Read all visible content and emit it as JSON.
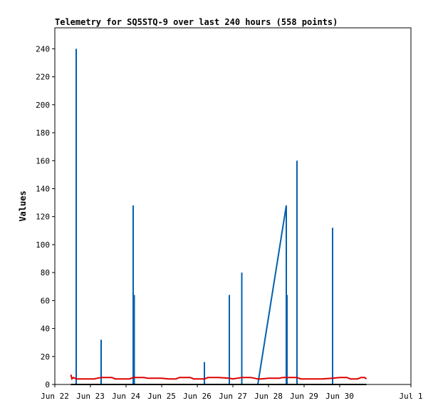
{
  "chart_data": {
    "type": "line",
    "title": "Telemetry for SQ5STQ-9 over last 240 hours (558 points)",
    "xlabel": "",
    "ylabel": "Values",
    "x_unit": "days (June)",
    "xlim": [
      22,
      32
    ],
    "ylim": [
      0,
      255
    ],
    "x_ticks": [
      {
        "value": 22,
        "label": "Jun 22"
      },
      {
        "value": 23,
        "label": "Jun 23"
      },
      {
        "value": 24,
        "label": "Jun 24"
      },
      {
        "value": 25,
        "label": "Jun 25"
      },
      {
        "value": 26,
        "label": "Jun 26"
      },
      {
        "value": 27,
        "label": "Jun 27"
      },
      {
        "value": 28,
        "label": "Jun 28"
      },
      {
        "value": 29,
        "label": "Jun 29"
      },
      {
        "value": 30,
        "label": "Jun 30"
      },
      {
        "value": 32,
        "label": "Jul 1"
      }
    ],
    "y_ticks": [
      0,
      20,
      40,
      60,
      80,
      100,
      120,
      140,
      160,
      180,
      200,
      220,
      240
    ],
    "grid": false,
    "series": [
      {
        "color": "#0060b0",
        "points": [
          [
            22.45,
            0
          ],
          [
            22.6,
            0
          ],
          [
            22.6,
            240
          ],
          [
            22.6,
            0
          ],
          [
            23.3,
            0
          ],
          [
            23.3,
            32
          ],
          [
            23.3,
            0
          ],
          [
            24.2,
            0
          ],
          [
            24.2,
            128
          ],
          [
            24.2,
            0
          ],
          [
            24.23,
            0
          ],
          [
            24.23,
            64
          ],
          [
            24.23,
            0
          ],
          [
            26.2,
            0
          ],
          [
            26.2,
            16
          ],
          [
            26.2,
            0
          ],
          [
            26.9,
            0
          ],
          [
            26.9,
            64
          ],
          [
            26.9,
            0
          ],
          [
            27.25,
            0
          ],
          [
            27.25,
            80
          ],
          [
            27.25,
            0
          ],
          [
            27.7,
            0
          ],
          [
            28.5,
            128
          ],
          [
            28.5,
            0
          ],
          [
            28.52,
            0
          ],
          [
            28.52,
            64
          ],
          [
            28.52,
            0
          ],
          [
            28.8,
            0
          ],
          [
            28.8,
            160
          ],
          [
            28.8,
            0
          ],
          [
            29.8,
            0
          ],
          [
            29.8,
            112
          ],
          [
            29.8,
            0
          ],
          [
            30.5,
            0
          ]
        ]
      },
      {
        "color": "#dd0000",
        "points": [
          [
            22.45,
            7
          ],
          [
            22.48,
            4
          ],
          [
            22.52,
            5
          ],
          [
            22.6,
            4
          ],
          [
            23.0,
            4
          ],
          [
            23.1,
            4
          ],
          [
            23.3,
            5
          ],
          [
            23.6,
            5
          ],
          [
            23.7,
            4
          ],
          [
            23.8,
            4
          ],
          [
            24.1,
            4
          ],
          [
            24.2,
            5
          ],
          [
            24.5,
            5
          ],
          [
            24.6,
            4.5
          ],
          [
            25.0,
            4.5
          ],
          [
            25.2,
            4
          ],
          [
            25.4,
            4
          ],
          [
            25.5,
            5
          ],
          [
            25.8,
            5
          ],
          [
            25.9,
            4
          ],
          [
            26.2,
            4
          ],
          [
            26.3,
            5
          ],
          [
            26.6,
            5
          ],
          [
            26.9,
            4.5
          ],
          [
            27.0,
            4
          ],
          [
            27.25,
            5
          ],
          [
            27.5,
            5
          ],
          [
            27.7,
            4
          ],
          [
            27.8,
            4
          ],
          [
            28.0,
            4.5
          ],
          [
            28.3,
            4.5
          ],
          [
            28.4,
            5
          ],
          [
            28.8,
            5
          ],
          [
            28.9,
            4
          ],
          [
            29.3,
            4
          ],
          [
            29.5,
            4
          ],
          [
            29.8,
            4.5
          ],
          [
            30.0,
            5
          ],
          [
            30.2,
            5
          ],
          [
            30.3,
            4
          ],
          [
            30.5,
            4
          ],
          [
            30.6,
            5
          ],
          [
            30.7,
            5
          ],
          [
            30.75,
            4
          ]
        ]
      },
      {
        "color": "#000000",
        "points": [
          [
            22.45,
            0
          ],
          [
            30.75,
            0
          ]
        ]
      }
    ]
  }
}
